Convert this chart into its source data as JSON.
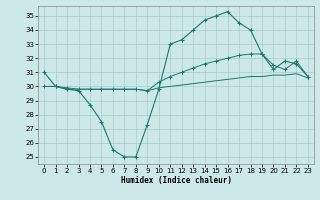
{
  "xlabel": "Humidex (Indice chaleur)",
  "x_values": [
    0,
    1,
    2,
    3,
    4,
    5,
    6,
    7,
    8,
    9,
    10,
    11,
    12,
    13,
    14,
    15,
    16,
    17,
    18,
    19,
    20,
    21,
    22,
    23
  ],
  "line1": [
    31,
    30,
    29.8,
    29.7,
    28.7,
    27.5,
    25.5,
    25.0,
    25.0,
    27.3,
    29.8,
    33.0,
    33.3,
    34.0,
    34.7,
    35.0,
    35.3,
    34.5,
    34.0,
    32.3,
    31.2,
    31.8,
    31.6,
    30.7
  ],
  "line2": [
    30,
    30,
    29.9,
    29.8,
    29.8,
    29.8,
    29.8,
    29.8,
    29.8,
    29.7,
    30.3,
    30.7,
    31.0,
    31.3,
    31.6,
    31.8,
    32.0,
    32.2,
    32.3,
    32.3,
    31.5,
    31.2,
    31.8,
    30.7
  ],
  "line3": [
    30,
    30,
    29.8,
    29.8,
    29.8,
    29.8,
    29.8,
    29.8,
    29.8,
    29.7,
    29.9,
    30.0,
    30.1,
    30.2,
    30.3,
    30.4,
    30.5,
    30.6,
    30.7,
    30.7,
    30.8,
    30.8,
    30.9,
    30.6
  ],
  "line_color": "#1a7a6e",
  "bg_color": "#cde8e8",
  "grid_color": "#aacccc",
  "ylim": [
    24.5,
    35.7
  ],
  "xlim": [
    -0.5,
    23.5
  ],
  "yticks": [
    25,
    26,
    27,
    28,
    29,
    30,
    31,
    32,
    33,
    34,
    35
  ],
  "xticks": [
    0,
    1,
    2,
    3,
    4,
    5,
    6,
    7,
    8,
    9,
    10,
    11,
    12,
    13,
    14,
    15,
    16,
    17,
    18,
    19,
    20,
    21,
    22,
    23
  ]
}
